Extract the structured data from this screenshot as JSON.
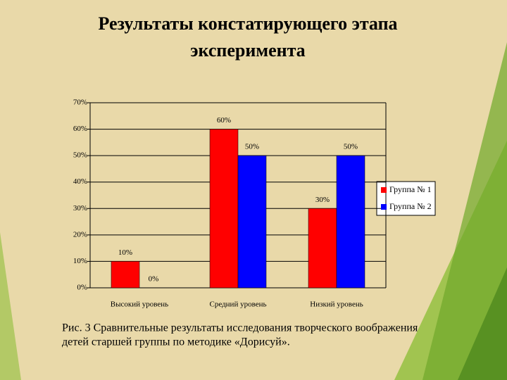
{
  "chart_data": {
    "type": "bar",
    "title_lines": [
      "Результаты констатирующего этапа",
      "эксперимента"
    ],
    "caption_lines": [
      "Рис. 3 Сравнительные результаты исследования творческого воображения",
      "детей старшей группы по методике «Дорисуй»."
    ],
    "categories": [
      "Высокий уровень",
      "Средний уровень",
      "Низкий уровень"
    ],
    "series": [
      {
        "name": "Группа № 1",
        "color": "#ff0000",
        "values": [
          10,
          60,
          30
        ],
        "value_labels": [
          "10%",
          "60%",
          "30%"
        ]
      },
      {
        "name": "Группа № 2",
        "color": "#0000ff",
        "values": [
          0,
          50,
          50
        ],
        "value_labels": [
          "0%",
          "50%",
          "50%"
        ]
      }
    ],
    "ylim": [
      0,
      70
    ],
    "yticks": [
      {
        "value": 0,
        "label": "0%"
      },
      {
        "value": 10,
        "label": "10%"
      },
      {
        "value": 20,
        "label": "20%"
      },
      {
        "value": 30,
        "label": "30%"
      },
      {
        "value": 40,
        "label": "40%"
      },
      {
        "value": 50,
        "label": "50%"
      },
      {
        "value": 60,
        "label": "60%"
      },
      {
        "value": 70,
        "label": "70%"
      }
    ],
    "grid": true,
    "legend": "right"
  }
}
